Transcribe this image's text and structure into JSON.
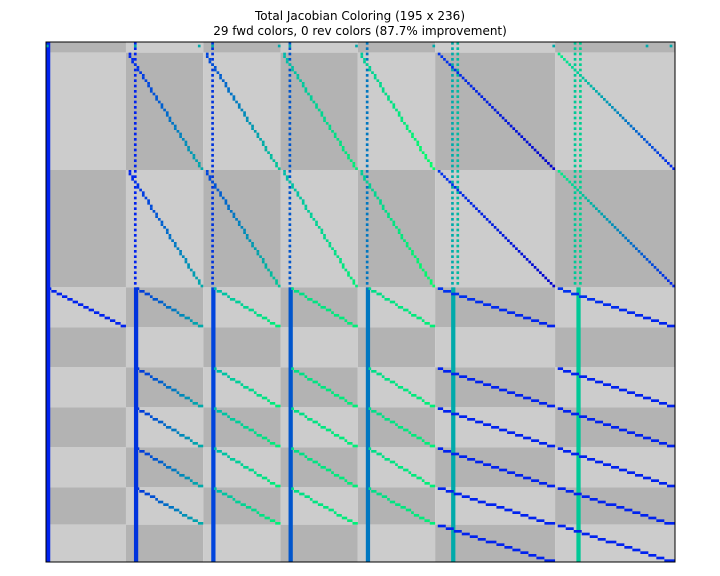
{
  "chart_data": {
    "type": "heatmap",
    "title": "Total Jacobian Coloring (195 x 236)",
    "subtitle": "29 fwd colors, 0 rev colors (87.7% improvement)",
    "rows": 195,
    "cols": 236,
    "grid": false,
    "axes_ticks": false,
    "row_blocks": [
      {
        "start": 0,
        "end": 4
      },
      {
        "start": 4,
        "end": 48
      },
      {
        "start": 48,
        "end": 92
      },
      {
        "start": 92,
        "end": 107
      },
      {
        "start": 107,
        "end": 122
      },
      {
        "start": 122,
        "end": 137
      },
      {
        "start": 137,
        "end": 152
      },
      {
        "start": 152,
        "end": 167
      },
      {
        "start": 167,
        "end": 181
      },
      {
        "start": 181,
        "end": 195
      }
    ],
    "col_blocks": [
      {
        "start": 0,
        "end": 30
      },
      {
        "start": 30,
        "end": 59
      },
      {
        "start": 59,
        "end": 88
      },
      {
        "start": 88,
        "end": 117
      },
      {
        "start": 117,
        "end": 146
      },
      {
        "start": 146,
        "end": 191
      },
      {
        "start": 191,
        "end": 236
      }
    ],
    "block_shading": {
      "dark": "#b3b3b3",
      "light": "#cccccc"
    },
    "dense_columns": [
      {
        "col": 0,
        "row_start": 0,
        "row_end": 195,
        "color": "#0022ee"
      },
      {
        "col": 33,
        "row_start": 92,
        "row_end": 195,
        "color": "#0033dd"
      },
      {
        "col": 62,
        "row_start": 92,
        "row_end": 195,
        "color": "#0044dd"
      },
      {
        "col": 91,
        "row_start": 92,
        "row_end": 195,
        "color": "#0055cc"
      },
      {
        "col": 120,
        "row_start": 92,
        "row_end": 195,
        "color": "#0077c0"
      },
      {
        "col": 152,
        "row_start": 92,
        "row_end": 195,
        "color": "#00aaaa"
      },
      {
        "col": 199,
        "row_start": 92,
        "row_end": 195,
        "color": "#00c896"
      }
    ],
    "dashed_columns": [
      {
        "col": 33,
        "row_start": 0,
        "row_end": 92,
        "color": "#0022ee"
      },
      {
        "col": 62,
        "row_start": 0,
        "row_end": 92,
        "color": "#0033dd"
      },
      {
        "col": 91,
        "row_start": 0,
        "row_end": 92,
        "color": "#0055cc"
      },
      {
        "col": 120,
        "row_start": 0,
        "row_end": 92,
        "color": "#0077c0"
      },
      {
        "col": 152,
        "row_start": 0,
        "row_end": 92,
        "color": "#00aaaa"
      },
      {
        "col": 154,
        "row_start": 0,
        "row_end": 92,
        "color": "#00bba0"
      },
      {
        "col": 198,
        "row_start": 0,
        "row_end": 92,
        "color": "#00c896"
      },
      {
        "col": 200,
        "row_start": 0,
        "row_end": 92,
        "color": "#00d090"
      }
    ],
    "diagonals": [
      {
        "row_start": 4,
        "row_end": 48,
        "col_start": 31,
        "col_end": 59,
        "color_from": "#0022ee",
        "color_to": "#00aaaa"
      },
      {
        "row_start": 4,
        "row_end": 48,
        "col_start": 60,
        "col_end": 88,
        "color_from": "#0044dd",
        "color_to": "#00c896"
      },
      {
        "row_start": 4,
        "row_end": 48,
        "col_start": 89,
        "col_end": 117,
        "color_from": "#00bbaa",
        "color_to": "#00ee77"
      },
      {
        "row_start": 4,
        "row_end": 48,
        "col_start": 118,
        "col_end": 146,
        "color_from": "#00cc99",
        "color_to": "#00ff66"
      },
      {
        "row_start": 4,
        "row_end": 48,
        "col_start": 147,
        "col_end": 191,
        "color_from": "#0033ee",
        "color_to": "#0000cc"
      },
      {
        "row_start": 4,
        "row_end": 48,
        "col_start": 192,
        "col_end": 236,
        "color_from": "#00ee88",
        "color_to": "#0022ee"
      },
      {
        "row_start": 48,
        "row_end": 92,
        "col_start": 31,
        "col_end": 59,
        "color_from": "#0022ee",
        "color_to": "#00aaaa"
      },
      {
        "row_start": 48,
        "row_end": 92,
        "col_start": 60,
        "col_end": 88,
        "color_from": "#0044dd",
        "color_to": "#00c896"
      },
      {
        "row_start": 48,
        "row_end": 92,
        "col_start": 89,
        "col_end": 117,
        "color_from": "#00bbaa",
        "color_to": "#00ee77"
      },
      {
        "row_start": 48,
        "row_end": 92,
        "col_start": 118,
        "col_end": 146,
        "color_from": "#00cc99",
        "color_to": "#00ff66"
      },
      {
        "row_start": 48,
        "row_end": 92,
        "col_start": 147,
        "col_end": 191,
        "color_from": "#0033ee",
        "color_to": "#0000cc"
      },
      {
        "row_start": 48,
        "row_end": 92,
        "col_start": 192,
        "col_end": 236,
        "color_from": "#00ee88",
        "color_to": "#0022ee"
      },
      {
        "row_start": 92,
        "row_end": 107,
        "col_start": 1,
        "col_end": 30,
        "color_from": "#0022ee",
        "color_to": "#0022ee"
      },
      {
        "row_start": 92,
        "row_end": 107,
        "col_start": 34,
        "col_end": 59,
        "color_from": "#0033dd",
        "color_to": "#00aaaa"
      },
      {
        "row_start": 92,
        "row_end": 107,
        "col_start": 63,
        "col_end": 88,
        "color_from": "#00bbaa",
        "color_to": "#00ee77"
      },
      {
        "row_start": 92,
        "row_end": 107,
        "col_start": 92,
        "col_end": 117,
        "color_from": "#00dd88",
        "color_to": "#00ee77"
      },
      {
        "row_start": 92,
        "row_end": 107,
        "col_start": 121,
        "col_end": 146,
        "color_from": "#00dd88",
        "color_to": "#00ee77"
      },
      {
        "row_start": 92,
        "row_end": 107,
        "col_start": 147,
        "col_end": 191,
        "color_from": "#0033ee",
        "color_to": "#0022ee"
      },
      {
        "row_start": 92,
        "row_end": 107,
        "col_start": 192,
        "col_end": 236,
        "color_from": "#0033ee",
        "color_to": "#0022ee"
      },
      {
        "row_start": 122,
        "row_end": 137,
        "col_start": 34,
        "col_end": 59,
        "color_from": "#0033dd",
        "color_to": "#00aaaa"
      },
      {
        "row_start": 122,
        "row_end": 137,
        "col_start": 63,
        "col_end": 88,
        "color_from": "#00bbaa",
        "color_to": "#00ee77"
      },
      {
        "row_start": 122,
        "row_end": 137,
        "col_start": 92,
        "col_end": 117,
        "color_from": "#00dd88",
        "color_to": "#00ee77"
      },
      {
        "row_start": 122,
        "row_end": 137,
        "col_start": 121,
        "col_end": 146,
        "color_from": "#00dd88",
        "color_to": "#00ee77"
      },
      {
        "row_start": 122,
        "row_end": 137,
        "col_start": 147,
        "col_end": 191,
        "color_from": "#0022ee",
        "color_to": "#0022ee"
      },
      {
        "row_start": 122,
        "row_end": 137,
        "col_start": 192,
        "col_end": 236,
        "color_from": "#0022ee",
        "color_to": "#0022ee"
      },
      {
        "row_start": 137,
        "row_end": 152,
        "col_start": 34,
        "col_end": 59,
        "color_from": "#0033dd",
        "color_to": "#00aaaa"
      },
      {
        "row_start": 137,
        "row_end": 152,
        "col_start": 63,
        "col_end": 88,
        "color_from": "#00bbaa",
        "color_to": "#00ee77"
      },
      {
        "row_start": 137,
        "row_end": 152,
        "col_start": 92,
        "col_end": 117,
        "color_from": "#00dd88",
        "color_to": "#00ee77"
      },
      {
        "row_start": 137,
        "row_end": 152,
        "col_start": 121,
        "col_end": 146,
        "color_from": "#00dd88",
        "color_to": "#00ee77"
      },
      {
        "row_start": 137,
        "row_end": 152,
        "col_start": 147,
        "col_end": 191,
        "color_from": "#0022ee",
        "color_to": "#0022ee"
      },
      {
        "row_start": 137,
        "row_end": 152,
        "col_start": 192,
        "col_end": 236,
        "color_from": "#0022ee",
        "color_to": "#0022ee"
      },
      {
        "row_start": 152,
        "row_end": 167,
        "col_start": 34,
        "col_end": 59,
        "color_from": "#0033dd",
        "color_to": "#00aaaa"
      },
      {
        "row_start": 152,
        "row_end": 167,
        "col_start": 63,
        "col_end": 88,
        "color_from": "#00bbaa",
        "color_to": "#00ee77"
      },
      {
        "row_start": 152,
        "row_end": 167,
        "col_start": 92,
        "col_end": 117,
        "color_from": "#00dd88",
        "color_to": "#00ee77"
      },
      {
        "row_start": 152,
        "row_end": 167,
        "col_start": 121,
        "col_end": 146,
        "color_from": "#00dd88",
        "color_to": "#00ee77"
      },
      {
        "row_start": 152,
        "row_end": 167,
        "col_start": 147,
        "col_end": 191,
        "color_from": "#0022ee",
        "color_to": "#0022ee"
      },
      {
        "row_start": 152,
        "row_end": 167,
        "col_start": 192,
        "col_end": 236,
        "color_from": "#0022ee",
        "color_to": "#0022ee"
      },
      {
        "row_start": 167,
        "row_end": 181,
        "col_start": 34,
        "col_end": 59,
        "color_from": "#0033dd",
        "color_to": "#00aaaa"
      },
      {
        "row_start": 167,
        "row_end": 181,
        "col_start": 63,
        "col_end": 88,
        "color_from": "#00bbaa",
        "color_to": "#00ee77"
      },
      {
        "row_start": 167,
        "row_end": 181,
        "col_start": 92,
        "col_end": 117,
        "color_from": "#00dd88",
        "color_to": "#00ee77"
      },
      {
        "row_start": 167,
        "row_end": 181,
        "col_start": 121,
        "col_end": 146,
        "color_from": "#00dd88",
        "color_to": "#00ee77"
      },
      {
        "row_start": 167,
        "row_end": 181,
        "col_start": 147,
        "col_end": 191,
        "color_from": "#0022ee",
        "color_to": "#0022ee"
      },
      {
        "row_start": 167,
        "row_end": 181,
        "col_start": 192,
        "col_end": 236,
        "color_from": "#0022ee",
        "color_to": "#0022ee"
      },
      {
        "row_start": 181,
        "row_end": 195,
        "col_start": 147,
        "col_end": 191,
        "color_from": "#0022ee",
        "color_to": "#0022ee"
      },
      {
        "row_start": 181,
        "row_end": 195,
        "col_start": 192,
        "col_end": 236,
        "color_from": "#0022ee",
        "color_to": "#0022ee"
      }
    ],
    "sparse_rows": [
      {
        "row": 1,
        "cols": [
          0,
          33,
          57,
          62,
          87,
          91,
          116,
          145,
          190,
          225,
          234
        ],
        "color": "#00aaaa"
      }
    ]
  }
}
